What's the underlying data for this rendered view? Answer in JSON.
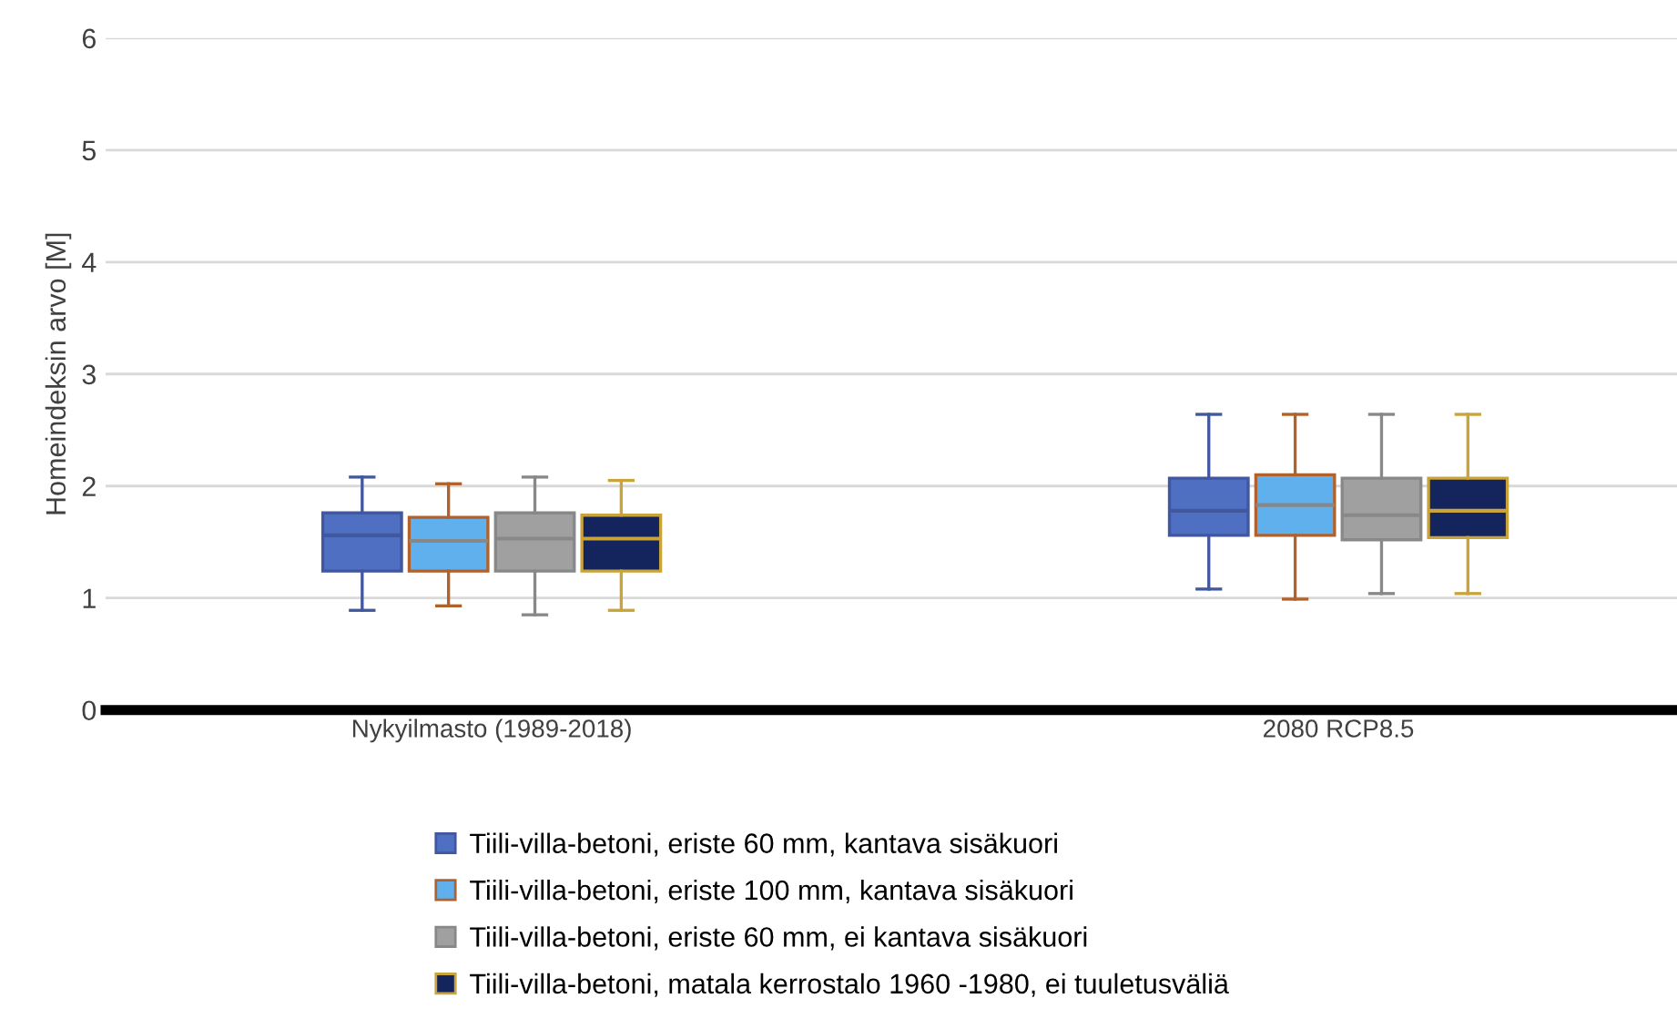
{
  "chart_data": {
    "type": "box",
    "ylabel": "Homeindeksin arvo [M]",
    "categories": [
      "Nykyilmasto (1989-2018)",
      "2080 RCP8.5"
    ],
    "ylim": [
      0,
      6
    ],
    "yticks": [
      0,
      1,
      2,
      3,
      4,
      5,
      6
    ],
    "grid": "y",
    "legend": "bottom",
    "series": [
      {
        "name": "Tiili-villa-betoni, eriste 60 mm, kantava sisäkuori",
        "color": "#4f6fc2",
        "boxes": [
          {
            "low": 0.89,
            "q1": 1.24,
            "median": 1.56,
            "q3": 1.76,
            "high": 2.08
          },
          {
            "low": 1.08,
            "q1": 1.56,
            "median": 1.78,
            "q3": 2.07,
            "high": 2.64
          }
        ]
      },
      {
        "name": "Tiili-villa-betoni, eriste 100 mm, kantava sisäkuori",
        "color": "#5fb0ec",
        "boxes": [
          {
            "low": 0.93,
            "q1": 1.24,
            "median": 1.51,
            "q3": 1.72,
            "high": 2.02
          },
          {
            "low": 0.99,
            "q1": 1.56,
            "median": 1.83,
            "q3": 2.1,
            "high": 2.64
          }
        ]
      },
      {
        "name": "Tiili-villa-betoni, eriste 60 mm, ei kantava sisäkuori",
        "color": "#a0a0a0",
        "boxes": [
          {
            "low": 0.85,
            "q1": 1.24,
            "median": 1.53,
            "q3": 1.76,
            "high": 2.08
          },
          {
            "low": 1.04,
            "q1": 1.52,
            "median": 1.74,
            "q3": 2.07,
            "high": 2.64
          }
        ]
      },
      {
        "name": "Tiili-villa-betoni, matala kerrostalo 1960 -1980, ei tuuletusväliä",
        "color": "#14245c",
        "boxes": [
          {
            "low": 0.89,
            "q1": 1.24,
            "median": 1.53,
            "q3": 1.74,
            "high": 2.05
          },
          {
            "low": 1.04,
            "q1": 1.54,
            "median": 1.78,
            "q3": 2.07,
            "high": 2.64
          }
        ]
      }
    ]
  }
}
